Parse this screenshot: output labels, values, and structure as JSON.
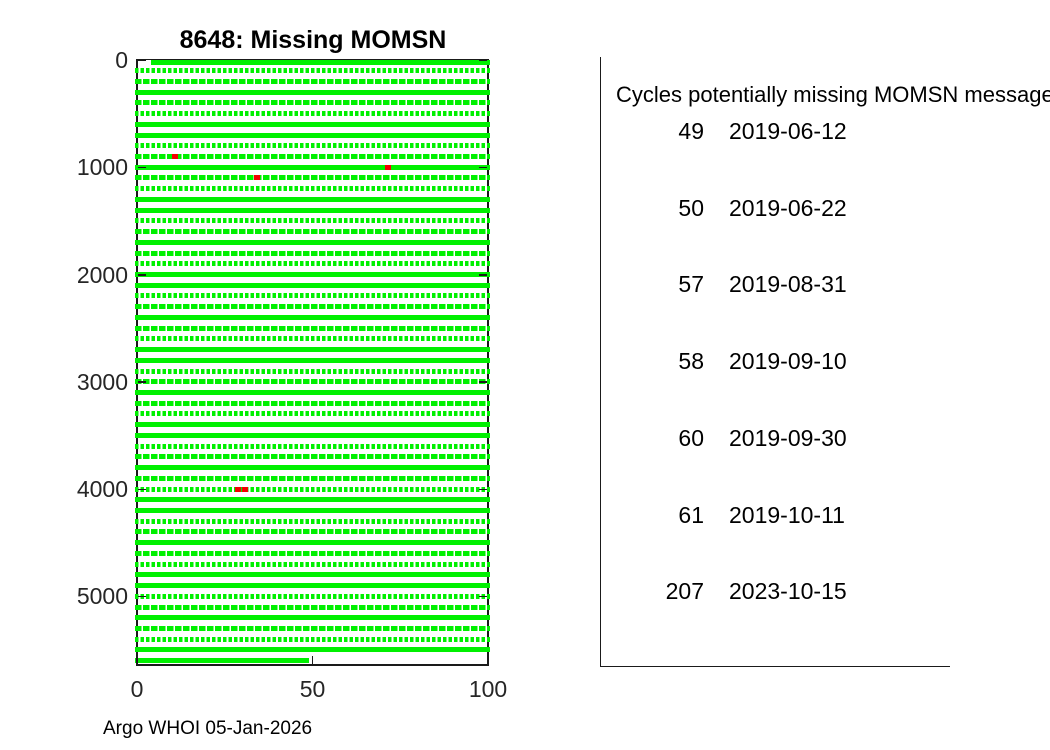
{
  "title": "8648: Missing MOMSN",
  "footer": "Argo WHOI 05-Jan-2026",
  "colors": {
    "received_green": "#00f000",
    "missing_red": "#f40000",
    "axis": "#1a1a1a",
    "background": "#ffffff"
  },
  "side_panel": {
    "header": "Cycles potentially missing MOMSN messages",
    "rows": [
      {
        "cycle": "49",
        "date": "2019-06-12"
      },
      {
        "cycle": "50",
        "date": "2019-06-22"
      },
      {
        "cycle": "57",
        "date": "2019-08-31"
      },
      {
        "cycle": "58",
        "date": "2019-09-10"
      },
      {
        "cycle": "60",
        "date": "2019-09-30"
      },
      {
        "cycle": "61",
        "date": "2019-10-11"
      },
      {
        "cycle": "207",
        "date": "2023-10-15"
      }
    ]
  },
  "chart_data": {
    "type": "scatter",
    "title": "8648: Missing MOMSN",
    "xlabel": "",
    "ylabel": "",
    "xlim": [
      0,
      100
    ],
    "ylim": [
      0,
      5640
    ],
    "y_axis_reversed": true,
    "x_ticks": [
      0,
      50,
      100
    ],
    "y_ticks": [
      0,
      1000,
      2000,
      3000,
      4000,
      5000
    ],
    "grid": false,
    "legend": null,
    "series": [
      {
        "name": "received MOMSN messages",
        "marker": "square",
        "color": "#00f000",
        "note": "dense horizontal rows of markers; one row every 100 MOMSN, x = MOMSN mod 100",
        "rows": {
          "y_start": 0,
          "y_step": 100,
          "y_end": 5600,
          "x_min": 0,
          "x_max": 100,
          "first_row_x_start": 4.5,
          "last_row_x_end": 48.5
        }
      },
      {
        "name": "missing MOMSN messages",
        "marker": "square",
        "color": "#f40000",
        "points": [
          {
            "x": 10.8,
            "y": 900
          },
          {
            "x": 71.5,
            "y": 1000
          },
          {
            "x": 34.2,
            "y": 1100
          },
          {
            "x": 28.9,
            "y": 4000
          },
          {
            "x": 30.8,
            "y": 4000
          }
        ]
      }
    ]
  }
}
